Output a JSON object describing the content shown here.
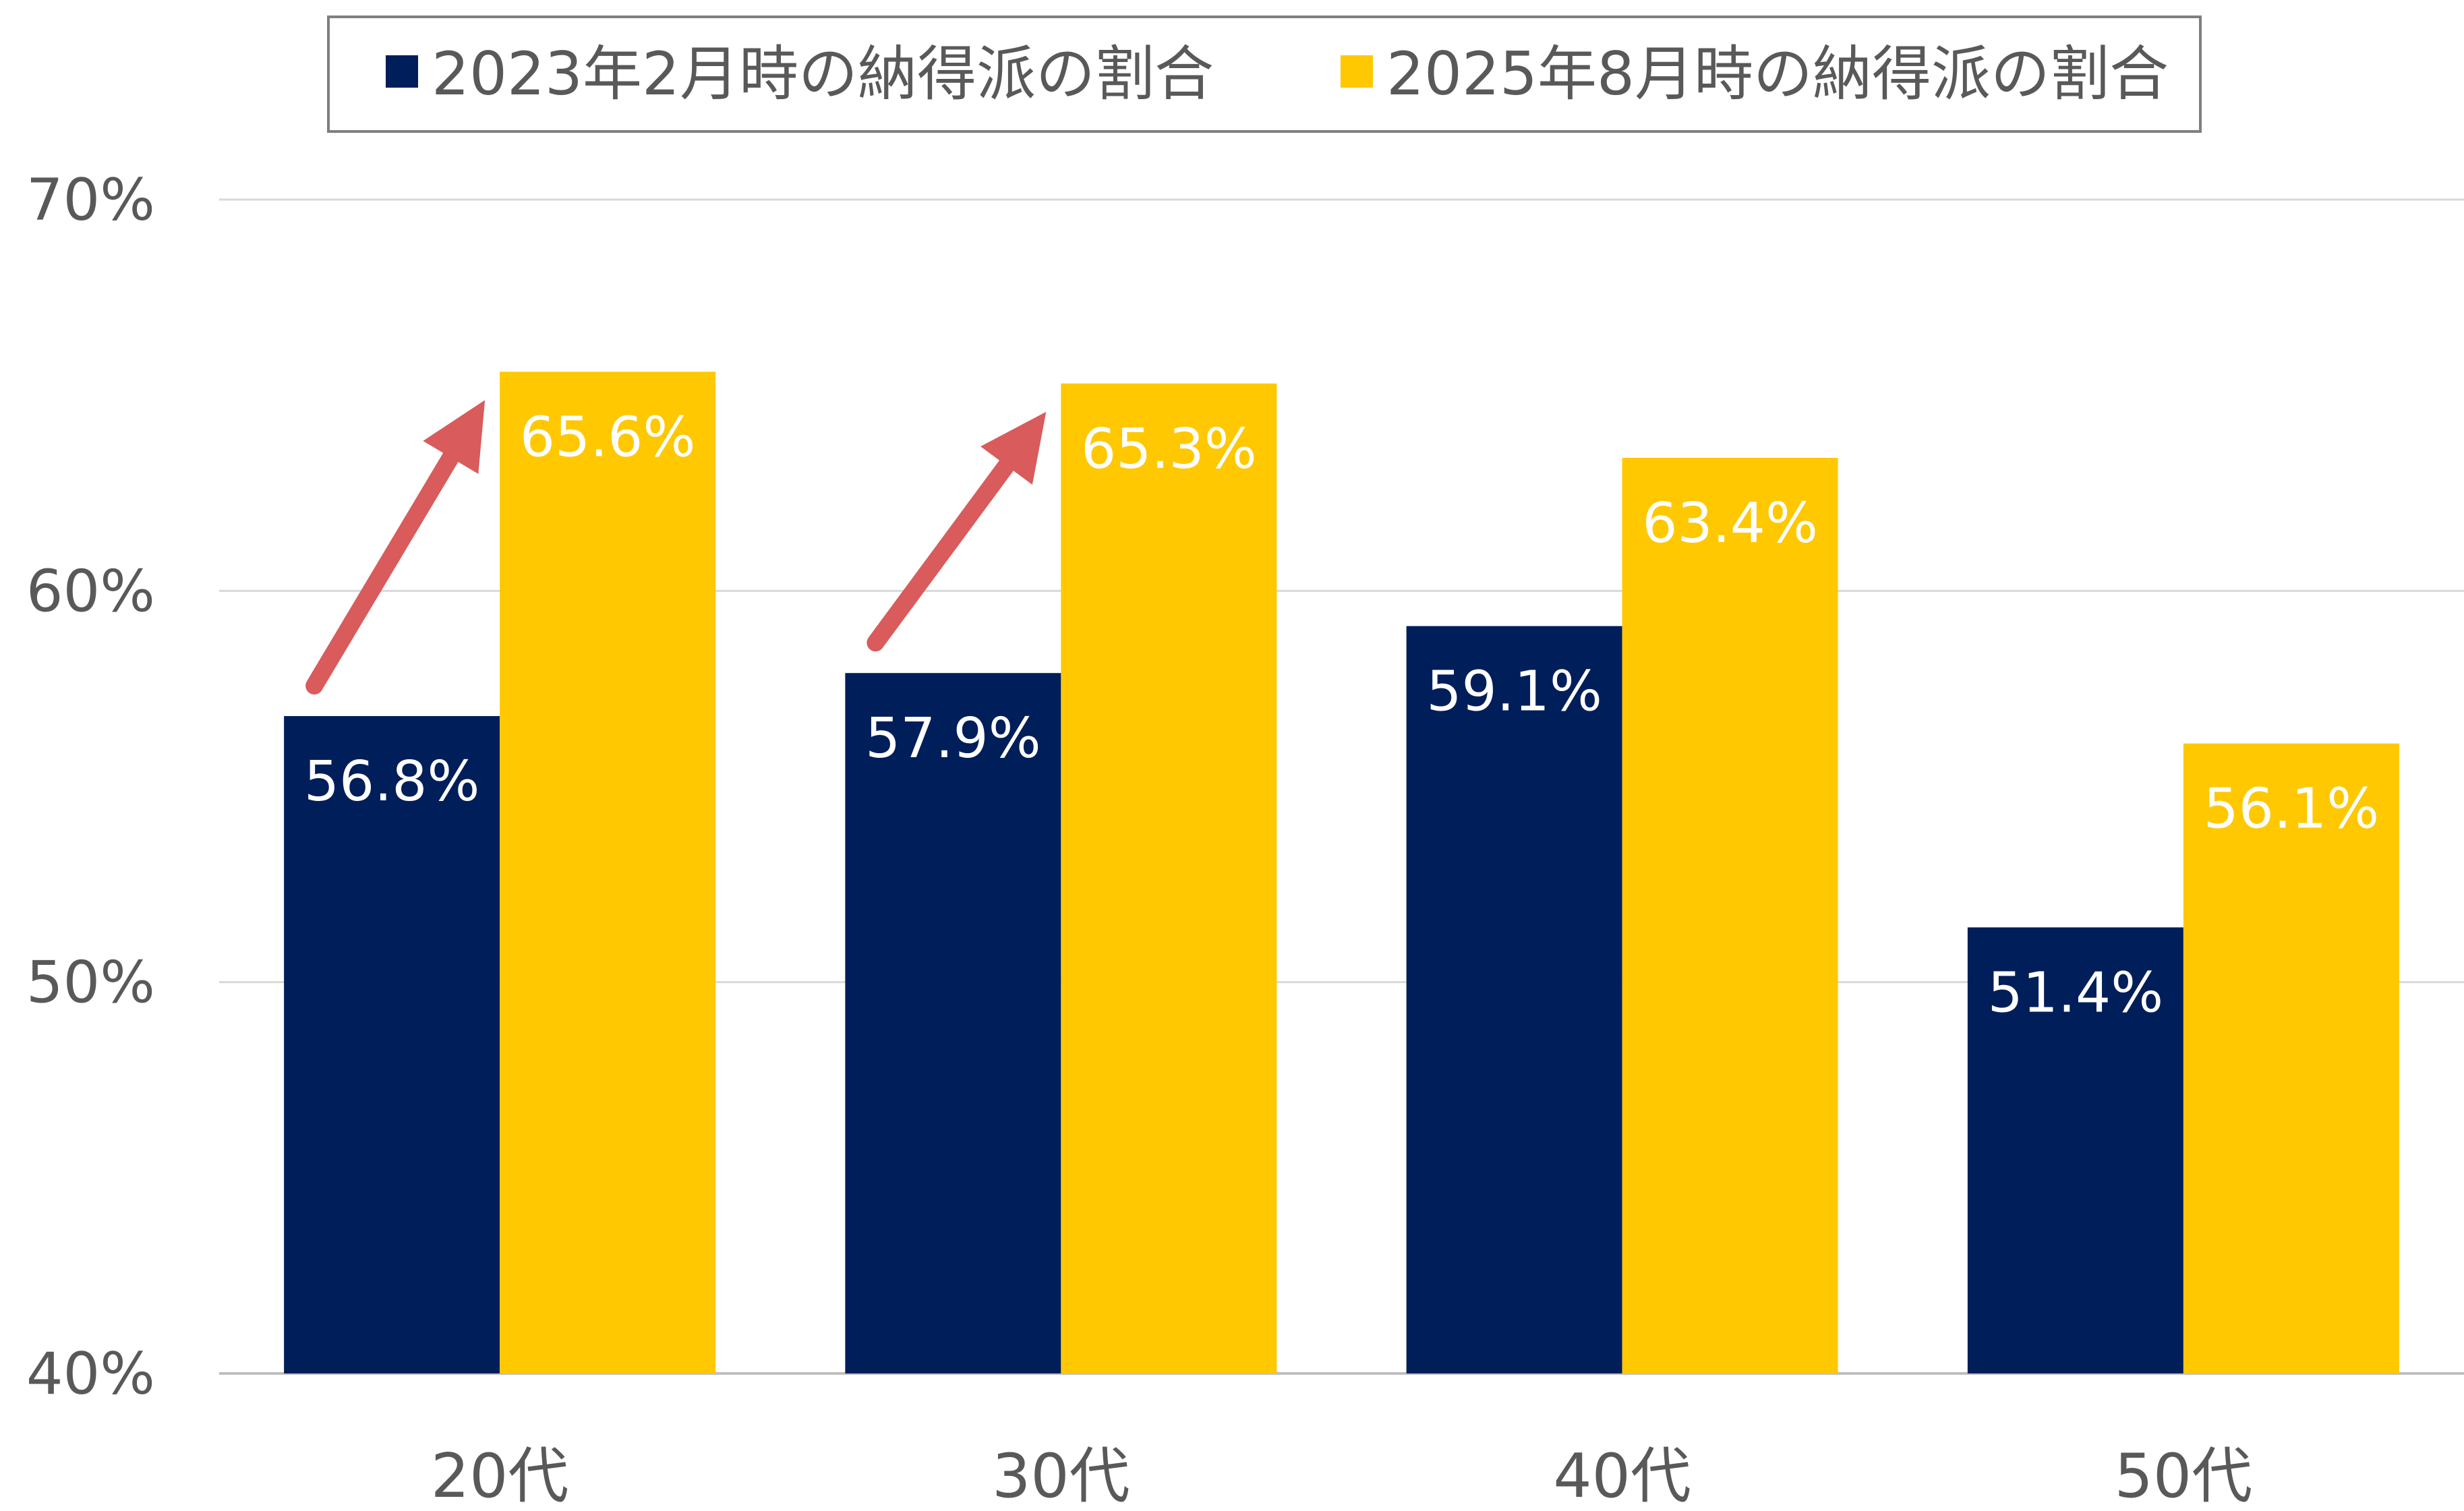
{
  "chart_data": {
    "type": "bar",
    "categories": [
      "20代",
      "30代",
      "40代",
      "50代"
    ],
    "series": [
      {
        "name": "2023年2月時の納得派の割合",
        "values": [
          56.8,
          57.9,
          59.1,
          51.4
        ],
        "labels": [
          "56.8%",
          "57.9%",
          "59.1%",
          "51.4%"
        ],
        "color": "#001E5A"
      },
      {
        "name": "2025年8月時の納得派の割合",
        "values": [
          65.6,
          65.3,
          63.4,
          56.1
        ],
        "labels": [
          "65.6%",
          "65.3%",
          "63.4%",
          "56.1%"
        ],
        "color": "#FFC800"
      }
    ],
    "ylim": [
      40,
      70
    ],
    "yticks": [
      40,
      50,
      60,
      70
    ],
    "ytick_labels": [
      "40%",
      "50%",
      "60%",
      "70%"
    ],
    "title": "",
    "xlabel": "",
    "ylabel": "",
    "grid": true,
    "legend_position": "top",
    "annotations": [
      {
        "type": "arrow",
        "category": "20代",
        "color": "#D95B5B"
      },
      {
        "type": "arrow",
        "category": "30代",
        "color": "#D95B5B"
      }
    ]
  }
}
